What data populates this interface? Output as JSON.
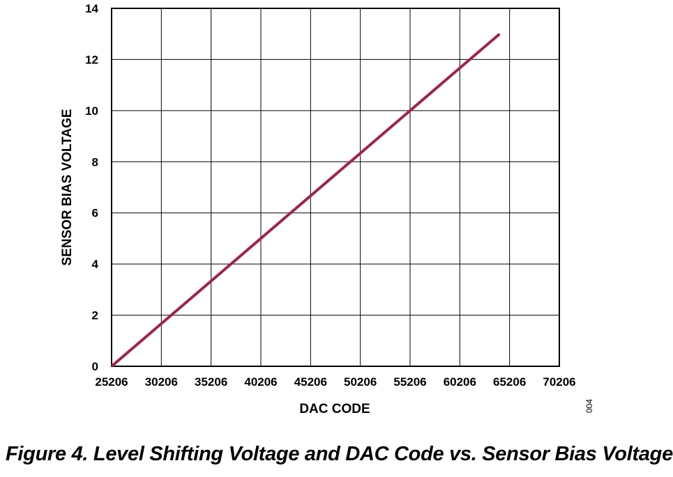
{
  "chart_data": {
    "type": "line",
    "xlabel": "DAC CODE",
    "ylabel": "SENSOR BIAS VOLTAGE",
    "xlim": [
      25206,
      70206
    ],
    "ylim": [
      0,
      14
    ],
    "x_ticks": [
      "25206",
      "30206",
      "35206",
      "40206",
      "45206",
      "50206",
      "55206",
      "60206",
      "65206",
      "70206"
    ],
    "y_ticks": [
      "0",
      "2",
      "4",
      "6",
      "8",
      "10",
      "12",
      "14"
    ],
    "grid": true,
    "line_color": "#A0234A",
    "series": [
      {
        "x": [
          25206,
          64206
        ],
        "y": [
          0,
          13
        ]
      }
    ],
    "figure_id": "004"
  },
  "caption": "Figure 4. Level Shifting Voltage and DAC Code vs. Sensor Bias Voltage"
}
